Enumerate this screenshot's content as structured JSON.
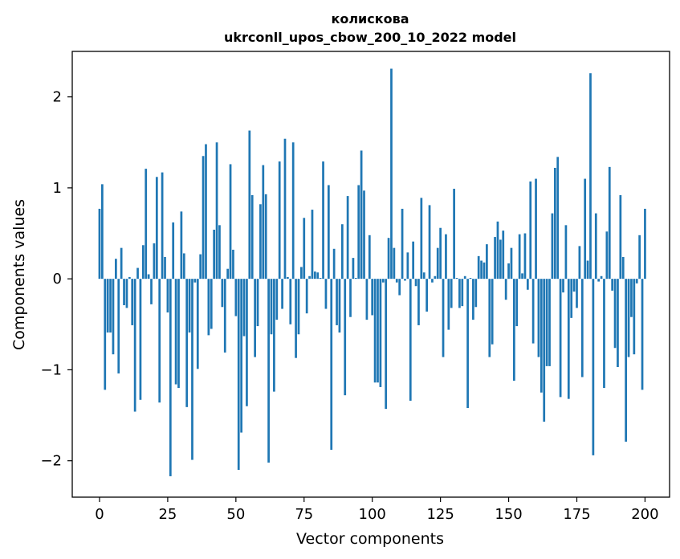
{
  "chart_data": {
    "type": "bar",
    "title": "колискова",
    "subtitle": "ukrconll_upos_cbow_200_10_2022 model",
    "xlabel": "Vector components",
    "ylabel": "Components values",
    "xlim": [
      -10,
      209
    ],
    "ylim": [
      -2.4,
      2.5
    ],
    "xticks": [
      0,
      25,
      50,
      75,
      100,
      125,
      150,
      175,
      200
    ],
    "yticks": [
      -2,
      -1,
      0,
      1,
      2
    ],
    "ytick_labels": [
      "−2",
      "−1",
      "0",
      "1",
      "2"
    ],
    "grid": false,
    "bar_color": "#1f77b4",
    "values": [
      0.77,
      1.04,
      -1.22,
      -0.59,
      -0.59,
      -0.83,
      0.22,
      -1.04,
      0.34,
      -0.29,
      -0.32,
      0.02,
      -0.51,
      -1.46,
      0.12,
      -1.33,
      0.37,
      1.21,
      0.05,
      -0.28,
      0.39,
      1.12,
      -1.36,
      1.17,
      0.24,
      -0.37,
      -2.17,
      0.62,
      -1.16,
      -1.2,
      0.74,
      0.28,
      -1.41,
      -0.59,
      -1.99,
      -0.04,
      -0.99,
      0.27,
      1.35,
      1.48,
      -0.62,
      -0.55,
      0.54,
      1.5,
      0.59,
      -0.31,
      -0.81,
      0.11,
      1.26,
      0.32,
      -0.41,
      -2.1,
      -1.69,
      -0.63,
      -1.4,
      1.63,
      0.92,
      -0.86,
      -0.52,
      0.82,
      1.25,
      0.93,
      -2.02,
      -0.61,
      -1.24,
      -0.45,
      1.29,
      -0.33,
      1.54,
      0.02,
      -0.5,
      1.5,
      -0.87,
      -0.61,
      0.13,
      0.67,
      -0.38,
      0.03,
      0.76,
      0.08,
      0.07,
      0.01,
      1.29,
      -0.33,
      1.03,
      -1.88,
      0.33,
      -0.51,
      -0.59,
      0.6,
      -1.28,
      0.91,
      -0.42,
      0.23,
      0.01,
      1.03,
      1.41,
      0.97,
      -0.45,
      0.48,
      -0.4,
      -1.14,
      -1.14,
      -1.19,
      -0.04,
      -1.43,
      0.45,
      2.31,
      0.34,
      -0.04,
      -0.18,
      0.77,
      -0.02,
      0.29,
      -1.34,
      0.41,
      -0.08,
      -0.51,
      0.89,
      0.07,
      -0.36,
      0.81,
      -0.04,
      0.03,
      0.34,
      0.56,
      -0.86,
      0.49,
      -0.56,
      -0.32,
      0.99,
      0.01,
      -0.32,
      -0.3,
      0.03,
      -1.42,
      0.01,
      -0.45,
      -0.31,
      0.25,
      0.2,
      0.18,
      0.38,
      -0.86,
      -0.72,
      0.46,
      0.63,
      0.43,
      0.53,
      -0.23,
      0.17,
      0.34,
      -1.12,
      -0.52,
      0.49,
      0.06,
      0.5,
      -0.12,
      1.07,
      -0.71,
      1.1,
      -0.86,
      -1.25,
      -1.57,
      -0.96,
      -0.96,
      0.72,
      1.22,
      1.34,
      -1.3,
      -0.15,
      0.59,
      -1.32,
      -0.43,
      -0.14,
      -0.32,
      0.36,
      -1.08,
      1.1,
      0.2,
      2.26,
      -1.94,
      0.72,
      -0.03,
      0.03,
      -1.2,
      0.52,
      1.23,
      -0.13,
      -0.76,
      -0.97,
      0.92,
      0.24,
      -1.79,
      -0.86,
      -0.42,
      -0.83,
      -0.05,
      0.48,
      -1.22,
      0.77
    ]
  }
}
